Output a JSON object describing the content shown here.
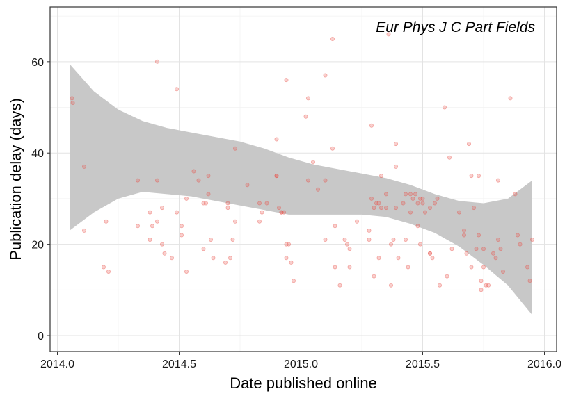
{
  "chart_data": {
    "type": "scatter",
    "title": "",
    "annotation": "Eur Phys J C Part Fields",
    "xlabel": "Date published online",
    "ylabel": "Publication delay (days)",
    "xlim": [
      2013.97,
      2016.05
    ],
    "ylim": [
      -3.5,
      72
    ],
    "x_ticks": [
      2014.0,
      2014.5,
      2015.0,
      2015.5,
      2016.0
    ],
    "x_tick_labels": [
      "2014.0",
      "2014.5",
      "2015.0",
      "2015.5",
      "2016.0"
    ],
    "y_ticks": [
      0,
      20,
      40,
      60
    ],
    "y_tick_labels": [
      "0",
      "20",
      "40",
      "60"
    ],
    "grid": true,
    "point_color": "#e8534a",
    "band_color": "#c8c8c8",
    "points": [
      {
        "x": 2014.06,
        "y": 52
      },
      {
        "x": 2014.063,
        "y": 51
      },
      {
        "x": 2014.11,
        "y": 37
      },
      {
        "x": 2014.11,
        "y": 23
      },
      {
        "x": 2014.19,
        "y": 15
      },
      {
        "x": 2014.2,
        "y": 25
      },
      {
        "x": 2014.21,
        "y": 14
      },
      {
        "x": 2014.33,
        "y": 34
      },
      {
        "x": 2014.33,
        "y": 24
      },
      {
        "x": 2014.38,
        "y": 27
      },
      {
        "x": 2014.38,
        "y": 21
      },
      {
        "x": 2014.39,
        "y": 24
      },
      {
        "x": 2014.41,
        "y": 60
      },
      {
        "x": 2014.41,
        "y": 34
      },
      {
        "x": 2014.41,
        "y": 25
      },
      {
        "x": 2014.43,
        "y": 28
      },
      {
        "x": 2014.43,
        "y": 20
      },
      {
        "x": 2014.44,
        "y": 18
      },
      {
        "x": 2014.47,
        "y": 17
      },
      {
        "x": 2014.49,
        "y": 54
      },
      {
        "x": 2014.49,
        "y": 27
      },
      {
        "x": 2014.51,
        "y": 24
      },
      {
        "x": 2014.51,
        "y": 22
      },
      {
        "x": 2014.53,
        "y": 30
      },
      {
        "x": 2014.53,
        "y": 14
      },
      {
        "x": 2014.56,
        "y": 36
      },
      {
        "x": 2014.58,
        "y": 34
      },
      {
        "x": 2014.6,
        "y": 29
      },
      {
        "x": 2014.6,
        "y": 19
      },
      {
        "x": 2014.61,
        "y": 29
      },
      {
        "x": 2014.62,
        "y": 35
      },
      {
        "x": 2014.62,
        "y": 31
      },
      {
        "x": 2014.63,
        "y": 21
      },
      {
        "x": 2014.64,
        "y": 17
      },
      {
        "x": 2014.69,
        "y": 16
      },
      {
        "x": 2014.7,
        "y": 29
      },
      {
        "x": 2014.7,
        "y": 28
      },
      {
        "x": 2014.71,
        "y": 17
      },
      {
        "x": 2014.72,
        "y": 21
      },
      {
        "x": 2014.73,
        "y": 41
      },
      {
        "x": 2014.73,
        "y": 25
      },
      {
        "x": 2014.78,
        "y": 33
      },
      {
        "x": 2014.83,
        "y": 29
      },
      {
        "x": 2014.83,
        "y": 25
      },
      {
        "x": 2014.84,
        "y": 27
      },
      {
        "x": 2014.86,
        "y": 29
      },
      {
        "x": 2014.9,
        "y": 43
      },
      {
        "x": 2014.9,
        "y": 35
      },
      {
        "x": 2014.9,
        "y": 35
      },
      {
        "x": 2014.91,
        "y": 28
      },
      {
        "x": 2014.92,
        "y": 27
      },
      {
        "x": 2014.92,
        "y": 27
      },
      {
        "x": 2014.93,
        "y": 27
      },
      {
        "x": 2014.94,
        "y": 56
      },
      {
        "x": 2014.94,
        "y": 17
      },
      {
        "x": 2014.94,
        "y": 20
      },
      {
        "x": 2014.95,
        "y": 20
      },
      {
        "x": 2014.96,
        "y": 16
      },
      {
        "x": 2014.97,
        "y": 12
      },
      {
        "x": 2015.02,
        "y": 48
      },
      {
        "x": 2015.03,
        "y": 52
      },
      {
        "x": 2015.03,
        "y": 34
      },
      {
        "x": 2015.05,
        "y": 38
      },
      {
        "x": 2015.07,
        "y": 32
      },
      {
        "x": 2015.1,
        "y": 57
      },
      {
        "x": 2015.1,
        "y": 34
      },
      {
        "x": 2015.1,
        "y": 21
      },
      {
        "x": 2015.13,
        "y": 65
      },
      {
        "x": 2015.13,
        "y": 41
      },
      {
        "x": 2015.14,
        "y": 24
      },
      {
        "x": 2015.14,
        "y": 15
      },
      {
        "x": 2015.16,
        "y": 11
      },
      {
        "x": 2015.18,
        "y": 21
      },
      {
        "x": 2015.19,
        "y": 20
      },
      {
        "x": 2015.2,
        "y": 15
      },
      {
        "x": 2015.2,
        "y": 19
      },
      {
        "x": 2015.23,
        "y": 25
      },
      {
        "x": 2015.28,
        "y": 23
      },
      {
        "x": 2015.28,
        "y": 21
      },
      {
        "x": 2015.29,
        "y": 46
      },
      {
        "x": 2015.29,
        "y": 30
      },
      {
        "x": 2015.3,
        "y": 28
      },
      {
        "x": 2015.3,
        "y": 13
      },
      {
        "x": 2015.31,
        "y": 29
      },
      {
        "x": 2015.32,
        "y": 29
      },
      {
        "x": 2015.32,
        "y": 17
      },
      {
        "x": 2015.33,
        "y": 35
      },
      {
        "x": 2015.33,
        "y": 28
      },
      {
        "x": 2015.35,
        "y": 31
      },
      {
        "x": 2015.35,
        "y": 28
      },
      {
        "x": 2015.36,
        "y": 66
      },
      {
        "x": 2015.37,
        "y": 20
      },
      {
        "x": 2015.37,
        "y": 11
      },
      {
        "x": 2015.38,
        "y": 21
      },
      {
        "x": 2015.39,
        "y": 42
      },
      {
        "x": 2015.39,
        "y": 37
      },
      {
        "x": 2015.39,
        "y": 28
      },
      {
        "x": 2015.4,
        "y": 17
      },
      {
        "x": 2015.42,
        "y": 29
      },
      {
        "x": 2015.43,
        "y": 31
      },
      {
        "x": 2015.43,
        "y": 21
      },
      {
        "x": 2015.44,
        "y": 15
      },
      {
        "x": 2015.45,
        "y": 31
      },
      {
        "x": 2015.45,
        "y": 27
      },
      {
        "x": 2015.46,
        "y": 30
      },
      {
        "x": 2015.47,
        "y": 31
      },
      {
        "x": 2015.48,
        "y": 29
      },
      {
        "x": 2015.48,
        "y": 24
      },
      {
        "x": 2015.49,
        "y": 30
      },
      {
        "x": 2015.49,
        "y": 20
      },
      {
        "x": 2015.5,
        "y": 29
      },
      {
        "x": 2015.5,
        "y": 30
      },
      {
        "x": 2015.51,
        "y": 27
      },
      {
        "x": 2015.53,
        "y": 28
      },
      {
        "x": 2015.53,
        "y": 18
      },
      {
        "x": 2015.53,
        "y": 18
      },
      {
        "x": 2015.54,
        "y": 17
      },
      {
        "x": 2015.55,
        "y": 29
      },
      {
        "x": 2015.56,
        "y": 30
      },
      {
        "x": 2015.57,
        "y": 11
      },
      {
        "x": 2015.59,
        "y": 50
      },
      {
        "x": 2015.6,
        "y": 13
      },
      {
        "x": 2015.61,
        "y": 39
      },
      {
        "x": 2015.62,
        "y": 19
      },
      {
        "x": 2015.65,
        "y": 27
      },
      {
        "x": 2015.67,
        "y": 23
      },
      {
        "x": 2015.67,
        "y": 22
      },
      {
        "x": 2015.68,
        "y": 18
      },
      {
        "x": 2015.69,
        "y": 42
      },
      {
        "x": 2015.7,
        "y": 35
      },
      {
        "x": 2015.7,
        "y": 15
      },
      {
        "x": 2015.71,
        "y": 28
      },
      {
        "x": 2015.72,
        "y": 19
      },
      {
        "x": 2015.73,
        "y": 35
      },
      {
        "x": 2015.73,
        "y": 22
      },
      {
        "x": 2015.74,
        "y": 10
      },
      {
        "x": 2015.74,
        "y": 12
      },
      {
        "x": 2015.75,
        "y": 19
      },
      {
        "x": 2015.75,
        "y": 15
      },
      {
        "x": 2015.76,
        "y": 11
      },
      {
        "x": 2015.77,
        "y": 11
      },
      {
        "x": 2015.79,
        "y": 18
      },
      {
        "x": 2015.8,
        "y": 17
      },
      {
        "x": 2015.81,
        "y": 34
      },
      {
        "x": 2015.81,
        "y": 21
      },
      {
        "x": 2015.82,
        "y": 19
      },
      {
        "x": 2015.83,
        "y": 14
      },
      {
        "x": 2015.86,
        "y": 52
      },
      {
        "x": 2015.88,
        "y": 31
      },
      {
        "x": 2015.89,
        "y": 22
      },
      {
        "x": 2015.9,
        "y": 20
      },
      {
        "x": 2015.93,
        "y": 15
      },
      {
        "x": 2015.94,
        "y": 12
      },
      {
        "x": 2015.95,
        "y": 21
      }
    ],
    "confidence_band": {
      "x": [
        2014.05,
        2014.15,
        2014.25,
        2014.35,
        2014.45,
        2014.55,
        2014.65,
        2014.75,
        2014.85,
        2014.95,
        2015.05,
        2015.15,
        2015.25,
        2015.35,
        2015.45,
        2015.55,
        2015.65,
        2015.75,
        2015.85,
        2015.95
      ],
      "upper": [
        59.5,
        53.5,
        49.5,
        47.0,
        45.5,
        44.5,
        43.5,
        42.5,
        41.0,
        39.0,
        37.5,
        36.5,
        35.5,
        34.5,
        33.0,
        31.0,
        29.5,
        29.0,
        30.0,
        34.0
      ],
      "lower": [
        23.0,
        27.0,
        30.0,
        31.5,
        31.0,
        30.5,
        29.5,
        28.5,
        27.5,
        26.5,
        26.5,
        26.5,
        26.5,
        26.0,
        24.5,
        22.5,
        19.5,
        15.5,
        11.0,
        4.5
      ]
    }
  }
}
